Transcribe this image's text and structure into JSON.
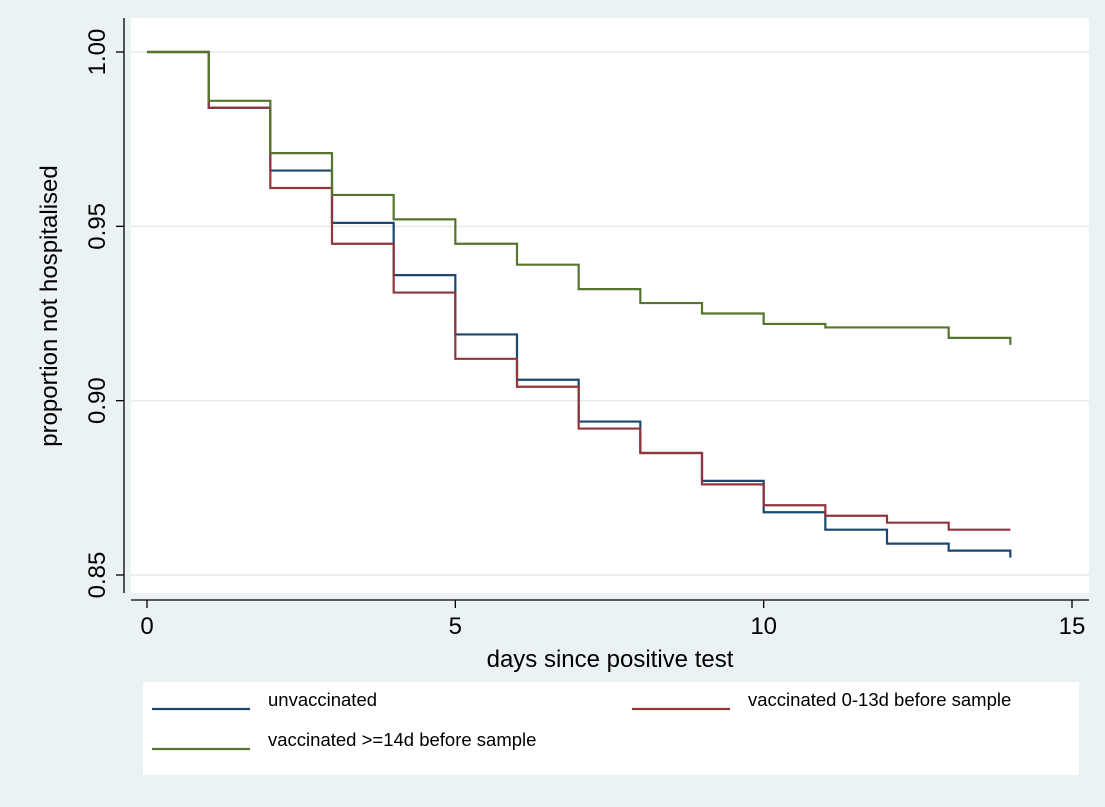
{
  "chart_data": {
    "type": "line",
    "step": true,
    "title": "",
    "xlabel": "days since positive test",
    "ylabel": "proportion not hospitalised",
    "xlim": [
      0,
      15
    ],
    "ylim": [
      0.85,
      1.0
    ],
    "xticks": [
      0,
      5,
      10,
      15
    ],
    "yticks": [
      0.85,
      0.9,
      0.95,
      1.0
    ],
    "xtick_labels": [
      "0",
      "5",
      "10",
      "15"
    ],
    "ytick_labels": [
      "0.85",
      "0.90",
      "0.95",
      "1.00"
    ],
    "grid": "horizontal",
    "legend_position": "bottom",
    "series": [
      {
        "name": "unvaccinated",
        "color": "#1a476f",
        "x": [
          0,
          1,
          2,
          3,
          4,
          5,
          6,
          7,
          8,
          9,
          10,
          11,
          12,
          13,
          14,
          14
        ],
        "y": [
          1.0,
          0.984,
          0.966,
          0.951,
          0.936,
          0.919,
          0.906,
          0.894,
          0.885,
          0.877,
          0.868,
          0.863,
          0.859,
          0.857,
          0.856,
          0.855
        ]
      },
      {
        "name": "vaccinated 0-13d before sample",
        "color": "#90353b",
        "x": [
          0,
          1,
          2,
          3,
          4,
          5,
          6,
          7,
          8,
          9,
          10,
          11,
          12,
          13,
          14
        ],
        "y": [
          1.0,
          0.984,
          0.961,
          0.945,
          0.931,
          0.912,
          0.904,
          0.892,
          0.885,
          0.876,
          0.87,
          0.867,
          0.865,
          0.863,
          0.863
        ]
      },
      {
        "name": "vaccinated >=14d before sample",
        "color": "#55752f",
        "x": [
          0,
          1,
          2,
          3,
          4,
          5,
          6,
          7,
          8,
          9,
          10,
          11,
          12,
          13,
          14,
          14
        ],
        "y": [
          1.0,
          0.986,
          0.971,
          0.959,
          0.952,
          0.945,
          0.939,
          0.932,
          0.928,
          0.925,
          0.922,
          0.921,
          0.921,
          0.918,
          0.918,
          0.916
        ]
      }
    ]
  }
}
